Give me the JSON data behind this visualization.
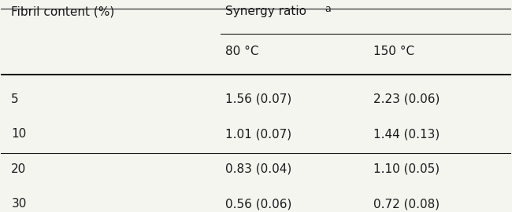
{
  "col1_header": "Fibril content (%)",
  "col2_header": "Synergy ratio",
  "col2_superscript": "a",
  "sub_col1": "80 °C",
  "sub_col2": "150 °C",
  "rows": [
    {
      "fibril": "5",
      "v80": "1.56 (0.07)",
      "v150": "2.23 (0.06)"
    },
    {
      "fibril": "10",
      "v80": "1.01 (0.07)",
      "v150": "1.44 (0.13)"
    },
    {
      "fibril": "20",
      "v80": "0.83 (0.04)",
      "v150": "1.10 (0.05)"
    },
    {
      "fibril": "30",
      "v80": "0.56 (0.06)",
      "v150": "0.72 (0.08)"
    }
  ],
  "background_color": "#f5f5f0",
  "text_color": "#1a1a1a",
  "font_size": 11,
  "font_family": "DejaVu Sans"
}
